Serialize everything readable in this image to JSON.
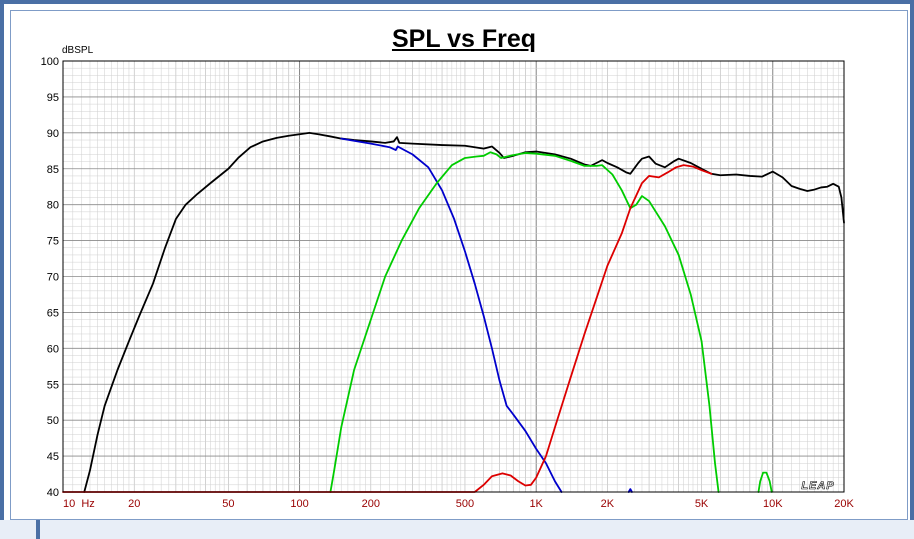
{
  "chart_data": {
    "type": "line",
    "title": "SPL vs Freq",
    "ylabel": "dBSPL",
    "xlabel": "",
    "x_scale": "log",
    "xlim": [
      10,
      20000
    ],
    "ylim": [
      40,
      100
    ],
    "grid": true,
    "x_ticks": [
      {
        "value": 10,
        "label": "10  Hz"
      },
      {
        "value": 20,
        "label": "20"
      },
      {
        "value": 50,
        "label": "50"
      },
      {
        "value": 100,
        "label": "100"
      },
      {
        "value": 200,
        "label": "200"
      },
      {
        "value": 500,
        "label": "500"
      },
      {
        "value": 1000,
        "label": "1K"
      },
      {
        "value": 2000,
        "label": "2K"
      },
      {
        "value": 5000,
        "label": "5K"
      },
      {
        "value": 10000,
        "label": "10K"
      },
      {
        "value": 20000,
        "label": "20K"
      }
    ],
    "y_ticks": [
      {
        "value": 40,
        "label": "40"
      },
      {
        "value": 45,
        "label": "45"
      },
      {
        "value": 50,
        "label": "50"
      },
      {
        "value": 55,
        "label": "55"
      },
      {
        "value": 60,
        "label": "60"
      },
      {
        "value": 65,
        "label": "65"
      },
      {
        "value": 70,
        "label": "70"
      },
      {
        "value": 75,
        "label": "75"
      },
      {
        "value": 80,
        "label": "80"
      },
      {
        "value": 85,
        "label": "85"
      },
      {
        "value": 90,
        "label": "90"
      },
      {
        "value": 95,
        "label": "95"
      },
      {
        "value": 100,
        "label": "100"
      }
    ],
    "watermark": "LEAP",
    "series": [
      {
        "color": "#000000",
        "points": [
          [
            12.3,
            40
          ],
          [
            13,
            43
          ],
          [
            14,
            48
          ],
          [
            15,
            52
          ],
          [
            17,
            57
          ],
          [
            19,
            61
          ],
          [
            21,
            64.5
          ],
          [
            24,
            69
          ],
          [
            27,
            74
          ],
          [
            30,
            78
          ],
          [
            33,
            80
          ],
          [
            37,
            81.5
          ],
          [
            42,
            83
          ],
          [
            50,
            85
          ],
          [
            55,
            86.5
          ],
          [
            62,
            88
          ],
          [
            70,
            88.8
          ],
          [
            80,
            89.3
          ],
          [
            90,
            89.6
          ],
          [
            100,
            89.8
          ],
          [
            110,
            90
          ],
          [
            120,
            89.8
          ],
          [
            135,
            89.5
          ],
          [
            150,
            89.2
          ],
          [
            170,
            89
          ],
          [
            200,
            88.8
          ],
          [
            230,
            88.6
          ],
          [
            250,
            88.8
          ],
          [
            258,
            89.4
          ],
          [
            264,
            88.6
          ],
          [
            300,
            88.5
          ],
          [
            400,
            88.3
          ],
          [
            500,
            88.2
          ],
          [
            600,
            87.8
          ],
          [
            650,
            88.1
          ],
          [
            700,
            87.2
          ],
          [
            730,
            86.5
          ],
          [
            800,
            86.8
          ],
          [
            900,
            87.3
          ],
          [
            1000,
            87.4
          ],
          [
            1200,
            87
          ],
          [
            1400,
            86.4
          ],
          [
            1600,
            85.6
          ],
          [
            1700,
            85.4
          ],
          [
            1900,
            86.2
          ],
          [
            2000,
            85.8
          ],
          [
            2200,
            85.2
          ],
          [
            2400,
            84.5
          ],
          [
            2500,
            84.3
          ],
          [
            2700,
            85.8
          ],
          [
            2800,
            86.4
          ],
          [
            3000,
            86.7
          ],
          [
            3200,
            85.7
          ],
          [
            3500,
            85.2
          ],
          [
            3800,
            86
          ],
          [
            4000,
            86.4
          ],
          [
            4500,
            85.8
          ],
          [
            5000,
            85
          ],
          [
            5500,
            84.3
          ],
          [
            6000,
            84.1
          ],
          [
            7000,
            84.2
          ],
          [
            8000,
            84
          ],
          [
            9000,
            83.9
          ],
          [
            10000,
            84.6
          ],
          [
            11000,
            83.8
          ],
          [
            12000,
            82.6
          ],
          [
            13000,
            82.2
          ],
          [
            14000,
            81.9
          ],
          [
            15000,
            82.1
          ],
          [
            16000,
            82.4
          ],
          [
            17000,
            82.5
          ],
          [
            18000,
            82.9
          ],
          [
            19000,
            82.5
          ],
          [
            19500,
            81
          ],
          [
            20000,
            77.5
          ]
        ]
      },
      {
        "color": "#0000cc",
        "points": [
          [
            150,
            89.2
          ],
          [
            200,
            88.5
          ],
          [
            240,
            88
          ],
          [
            255,
            87.6
          ],
          [
            260,
            88.1
          ],
          [
            270,
            87.8
          ],
          [
            300,
            87
          ],
          [
            350,
            85.2
          ],
          [
            400,
            82
          ],
          [
            450,
            78
          ],
          [
            500,
            73.5
          ],
          [
            550,
            69
          ],
          [
            600,
            64.5
          ],
          [
            650,
            60
          ],
          [
            700,
            55.5
          ],
          [
            750,
            52
          ],
          [
            800,
            50.8
          ],
          [
            900,
            48.5
          ],
          [
            1000,
            46
          ],
          [
            1100,
            44
          ],
          [
            1200,
            41.5
          ],
          [
            1280,
            40
          ]
        ]
      },
      {
        "color": "#00cc00",
        "points": [
          [
            135,
            40
          ],
          [
            140,
            43
          ],
          [
            150,
            49
          ],
          [
            170,
            57
          ],
          [
            200,
            64
          ],
          [
            230,
            70
          ],
          [
            270,
            75
          ],
          [
            320,
            79.5
          ],
          [
            380,
            83
          ],
          [
            440,
            85.5
          ],
          [
            500,
            86.5
          ],
          [
            560,
            86.7
          ],
          [
            600,
            86.8
          ],
          [
            640,
            87.3
          ],
          [
            680,
            87
          ],
          [
            710,
            86.5
          ],
          [
            800,
            86.9
          ],
          [
            900,
            87.2
          ],
          [
            1000,
            87.1
          ],
          [
            1200,
            86.8
          ],
          [
            1400,
            86.1
          ],
          [
            1600,
            85.4
          ],
          [
            1800,
            85.4
          ],
          [
            1900,
            85.5
          ],
          [
            2100,
            84.2
          ],
          [
            2300,
            82
          ],
          [
            2500,
            79.5
          ],
          [
            2650,
            80
          ],
          [
            2800,
            81.2
          ],
          [
            3000,
            80.5
          ],
          [
            3500,
            77
          ],
          [
            4000,
            73
          ],
          [
            4500,
            67.5
          ],
          [
            5000,
            61
          ],
          [
            5400,
            52
          ],
          [
            5700,
            44
          ],
          [
            5900,
            40
          ]
        ]
      },
      {
        "color": "#00cc00",
        "points": [
          [
            8700,
            40
          ],
          [
            8850,
            41.5
          ],
          [
            9100,
            42.7
          ],
          [
            9400,
            42.7
          ],
          [
            9700,
            41.5
          ],
          [
            9900,
            40
          ]
        ]
      },
      {
        "color": "#dd0000",
        "points": [
          [
            10,
            40
          ],
          [
            550,
            40
          ],
          [
            600,
            41
          ],
          [
            650,
            42.2
          ],
          [
            720,
            42.6
          ],
          [
            780,
            42.3
          ],
          [
            840,
            41.5
          ],
          [
            900,
            40.9
          ],
          [
            950,
            41
          ],
          [
            1000,
            42
          ],
          [
            1100,
            45
          ],
          [
            1200,
            49
          ],
          [
            1400,
            56
          ],
          [
            1600,
            62
          ],
          [
            1800,
            67
          ],
          [
            2000,
            71.5
          ],
          [
            2300,
            76
          ],
          [
            2500,
            79.5
          ],
          [
            2800,
            83
          ],
          [
            3000,
            84
          ],
          [
            3300,
            83.8
          ],
          [
            3600,
            84.5
          ],
          [
            3900,
            85.2
          ],
          [
            4200,
            85.5
          ],
          [
            4600,
            85.3
          ],
          [
            5000,
            84.8
          ],
          [
            5500,
            84.3
          ]
        ]
      },
      {
        "color": "#0000cc",
        "points": [
          [
            2460,
            40
          ],
          [
            2500,
            40.4
          ],
          [
            2540,
            40
          ]
        ]
      }
    ]
  }
}
